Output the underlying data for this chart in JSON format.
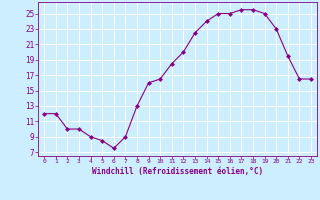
{
  "x": [
    0,
    1,
    2,
    3,
    4,
    5,
    6,
    7,
    8,
    9,
    10,
    11,
    12,
    13,
    14,
    15,
    16,
    17,
    18,
    19,
    20,
    21,
    22,
    23
  ],
  "y": [
    12,
    12,
    10,
    10,
    9,
    8.5,
    7.5,
    9,
    13,
    16,
    16.5,
    18.5,
    20,
    22.5,
    24,
    25,
    25,
    25.5,
    25.5,
    25,
    23,
    19.5,
    16.5,
    16.5
  ],
  "line_color": "#880088",
  "marker": "D",
  "markersize": 2.0,
  "linewidth": 0.8,
  "bg_color": "#cceeff",
  "grid_color": "#ffffff",
  "xlabel": "Windchill (Refroidissement éolien,°C)",
  "xlabel_fontsize": 5.5,
  "xlabel_color": "#880088",
  "tick_color": "#880088",
  "ytick_fontsize": 5.5,
  "xtick_fontsize": 4.5,
  "yticks": [
    7,
    9,
    11,
    13,
    15,
    17,
    19,
    21,
    23,
    25
  ],
  "xticks": [
    0,
    1,
    2,
    3,
    4,
    5,
    6,
    7,
    8,
    9,
    10,
    11,
    12,
    13,
    14,
    15,
    16,
    17,
    18,
    19,
    20,
    21,
    22,
    23
  ],
  "ylim": [
    6.5,
    26.5
  ],
  "xlim": [
    -0.5,
    23.5
  ]
}
